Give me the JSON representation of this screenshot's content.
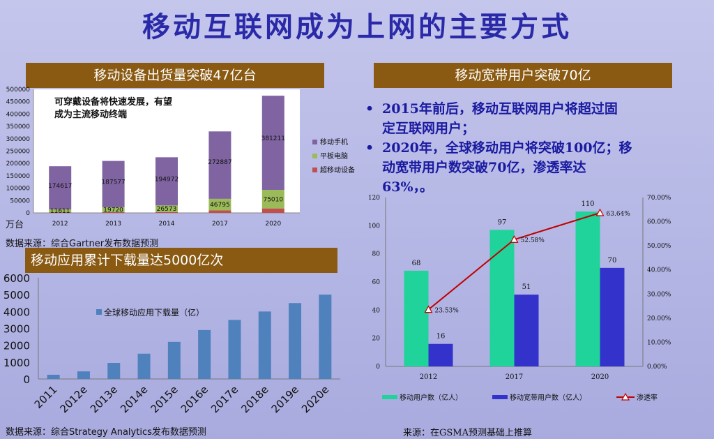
{
  "title": "移动互联网成为上网的主要方式",
  "panel1": {
    "banner": "移动设备出货量突破47亿台",
    "note_line1": "可穿戴设备将快速发展，有望",
    "note_line2": "成为主流移动终端",
    "unit": "万台",
    "source": "数据来源：综合Gartner发布数据预测",
    "legend": [
      "移动手机",
      "平板电脑",
      "超移动设备"
    ],
    "colors": {
      "phone": "#8064a2",
      "tablet": "#9bbb59",
      "ultra": "#c0504d"
    }
  },
  "panel2": {
    "banner": "移动宽带用户突破70亿",
    "bullets": [
      "2015年前后，移动互联网用户将超过固定互联网用户；",
      "2020年，全球移动用户将突破100亿；移动宽带用户数突破70亿，渗透率达63%，。"
    ],
    "bullet_lines": [
      [
        "2015年前后，移动互联网用户将超过固",
        "定互联网用户；"
      ],
      [
        "2020年，全球移动用户将突破100亿；移",
        "动宽带用户数突破70亿，渗透率达",
        "63%，。"
      ]
    ],
    "source": "来源：在GSMA预测基础上推算",
    "legend": [
      "移动用户数（亿人）",
      "移动宽带用户数（亿人）",
      "渗透率"
    ],
    "colors": {
      "mobile": "#1fd39a",
      "broadband": "#3333cc",
      "rate": "#c00000"
    }
  },
  "panel3": {
    "banner": "移动应用累计下载量达5000亿次",
    "legend": "全球移动应用下载量（亿）",
    "source": "数据来源：综合Strategy Analytics发布数据预测",
    "colors": {
      "bar": "#4f81bd"
    }
  },
  "chart_data": [
    {
      "type": "bar",
      "stacked": true,
      "categories": [
        "2012",
        "2013",
        "2014",
        "2017",
        "2020"
      ],
      "series": [
        {
          "name": "超移动设备",
          "values": [
            2500,
            3000,
            3500,
            10000,
            18000
          ]
        },
        {
          "name": "平板电脑",
          "values": [
            11611,
            19720,
            26573,
            46795,
            75010
          ]
        },
        {
          "name": "移动手机",
          "values": [
            174617,
            187577,
            194972,
            272887,
            381211
          ]
        }
      ],
      "data_labels": {
        "平板电脑": [
          "11611",
          "19720",
          "26573",
          "46795",
          "75010"
        ],
        "移动手机": [
          "174617",
          "187577",
          "194972",
          "272887",
          "381211"
        ]
      },
      "yticks": [
        "0",
        "50000",
        "100000",
        "150000",
        "200000",
        "250000",
        "300000",
        "350000",
        "400000",
        "450000",
        "500000"
      ],
      "ylim": [
        0,
        500000
      ],
      "legend_position": "right"
    },
    {
      "type": "bar",
      "categories": [
        "2011",
        "2012e",
        "2013e",
        "2014e",
        "2015e",
        "2016e",
        "2017e",
        "2018e",
        "2019e",
        "2020e"
      ],
      "series": [
        {
          "name": "全球移动应用下载量（亿）",
          "values": [
            250,
            450,
            950,
            1500,
            2200,
            2900,
            3500,
            4000,
            4500,
            5000
          ]
        }
      ],
      "yticks": [
        "0",
        "1000",
        "2000",
        "3000",
        "4000",
        "5000",
        "6000"
      ],
      "ylim": [
        0,
        6000
      ]
    },
    {
      "type": "bar",
      "categories": [
        "2012",
        "2017",
        "2020"
      ],
      "series": [
        {
          "name": "移动用户数（亿人）",
          "values": [
            68,
            97,
            110
          ]
        },
        {
          "name": "移动宽带用户数（亿人）",
          "values": [
            16,
            51,
            70
          ]
        },
        {
          "name": "渗透率",
          "values": [
            23.53,
            52.58,
            63.64
          ],
          "type": "line",
          "axis": "right",
          "labels": [
            "23.53%",
            "52.58%",
            "63.64%"
          ]
        }
      ],
      "yticks_left": [
        "0",
        "20",
        "40",
        "60",
        "80",
        "100",
        "120"
      ],
      "ylim_left": [
        0,
        120
      ],
      "yticks_right": [
        "0.00%",
        "10.00%",
        "20.00%",
        "30.00%",
        "40.00%",
        "50.00%",
        "60.00%",
        "70.00%"
      ],
      "ylim_right": [
        0,
        70
      ],
      "legend_position": "bottom"
    }
  ]
}
